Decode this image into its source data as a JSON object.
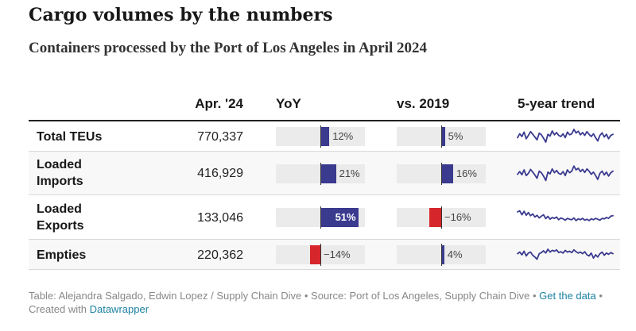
{
  "title": "Cargo volumes by the numbers",
  "subtitle": "Containers processed by the Port of Los Angeles in April 2024",
  "columns": {
    "apr": "Apr. '24",
    "yoy": "YoY",
    "vs2019": "vs. 2019",
    "trend": "5-year trend"
  },
  "footer": {
    "text": "Table: Alejandra Salgado, Edwin Lopez / Supply Chain Dive • Source: Port of Los Angeles, Supply Chain Dive • ",
    "get_data": "Get the data",
    "created_sep": " • Created with ",
    "datawrapper": "Datawrapper"
  },
  "colors": {
    "positive": "#3a3a8f",
    "negative": "#d7262b",
    "track": "#ebebeb"
  },
  "chart_data": {
    "type": "table",
    "bar_range": [
      -60,
      60
    ],
    "rows": [
      {
        "label": "Total TEUs",
        "apr_value": "770,337",
        "yoy": 12,
        "yoy_label": "12%",
        "vs2019": 5,
        "vs2019_label": "5%",
        "trend": [
          0.45,
          0.62,
          0.5,
          0.7,
          0.4,
          0.55,
          0.72,
          0.6,
          0.48,
          0.35,
          0.65,
          0.58,
          0.42,
          0.25,
          0.6,
          0.52,
          0.75,
          0.58,
          0.68,
          0.55,
          0.5,
          0.62,
          0.45,
          0.7,
          0.58,
          0.62,
          0.82,
          0.66,
          0.74,
          0.58,
          0.68,
          0.55,
          0.72,
          0.6,
          0.5,
          0.62,
          0.45,
          0.3,
          0.55,
          0.66,
          0.48,
          0.6,
          0.4,
          0.55,
          0.6
        ]
      },
      {
        "label": "Loaded Imports",
        "apr_value": "416,929",
        "yoy": 21,
        "yoy_label": "21%",
        "vs2019": 16,
        "vs2019_label": "16%",
        "trend": [
          0.48,
          0.6,
          0.46,
          0.68,
          0.42,
          0.52,
          0.7,
          0.58,
          0.45,
          0.3,
          0.62,
          0.55,
          0.4,
          0.2,
          0.58,
          0.5,
          0.72,
          0.55,
          0.65,
          0.52,
          0.48,
          0.6,
          0.42,
          0.68,
          0.55,
          0.62,
          0.85,
          0.68,
          0.75,
          0.6,
          0.7,
          0.56,
          0.72,
          0.62,
          0.48,
          0.58,
          0.42,
          0.25,
          0.52,
          0.62,
          0.45,
          0.58,
          0.4,
          0.55,
          0.62
        ]
      },
      {
        "label": "Loaded Exports",
        "apr_value": "133,046",
        "yoy": 51,
        "yoy_label": "51%",
        "vs2019": -16,
        "vs2019_label": "−16%",
        "trend": [
          0.75,
          0.8,
          0.62,
          0.78,
          0.6,
          0.72,
          0.58,
          0.66,
          0.52,
          0.6,
          0.48,
          0.56,
          0.62,
          0.45,
          0.55,
          0.42,
          0.5,
          0.46,
          0.52,
          0.4,
          0.48,
          0.44,
          0.38,
          0.46,
          0.42,
          0.4,
          0.48,
          0.36,
          0.44,
          0.4,
          0.46,
          0.38,
          0.42,
          0.36,
          0.44,
          0.4,
          0.46,
          0.42,
          0.38,
          0.46,
          0.44,
          0.5,
          0.46,
          0.56,
          0.58
        ]
      },
      {
        "label": "Empties",
        "apr_value": "220,362",
        "yoy": -14,
        "yoy_label": "−14%",
        "vs2019": 4,
        "vs2019_label": "4%",
        "trend": [
          0.55,
          0.62,
          0.5,
          0.66,
          0.45,
          0.58,
          0.62,
          0.48,
          0.4,
          0.3,
          0.55,
          0.6,
          0.68,
          0.58,
          0.75,
          0.62,
          0.7,
          0.66,
          0.72,
          0.6,
          0.64,
          0.58,
          0.7,
          0.62,
          0.66,
          0.6,
          0.72,
          0.64,
          0.58,
          0.62,
          0.55,
          0.64,
          0.5,
          0.45,
          0.58,
          0.35,
          0.5,
          0.4,
          0.55,
          0.62,
          0.48,
          0.58,
          0.52,
          0.6,
          0.55
        ]
      }
    ]
  }
}
